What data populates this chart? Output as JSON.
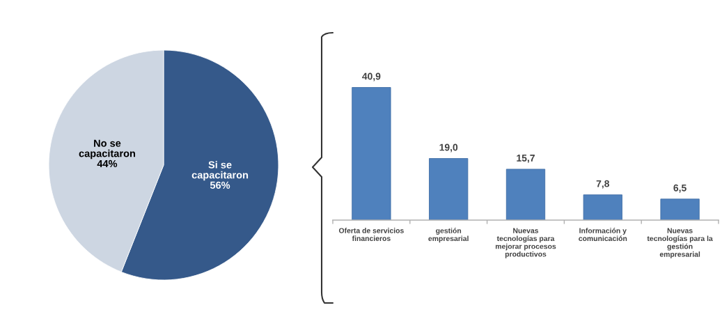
{
  "chart_data": [
    {
      "type": "pie",
      "categories": [
        "Si se\ncapacitaron",
        "No se\ncapacitaron"
      ],
      "values": [
        56,
        44
      ],
      "colors": [
        "#35598a",
        "#cdd6e2"
      ],
      "value_labels": [
        "56%",
        "44%"
      ]
    },
    {
      "type": "bar",
      "categories": [
        "Oferta de servicios\nfinancieros",
        "gestión\nempresarial",
        "Nuevas\ntecnologías para\nmejorar procesos\nproductivos",
        "Información y\ncomunicación",
        "Nuevas\ntecnologías para la\ngestión\nempresarial"
      ],
      "values": [
        40.9,
        19.0,
        15.7,
        7.8,
        6.5
      ],
      "color": "#4f81bd",
      "value_labels": [
        "40,9",
        "19,0",
        "15,7",
        "7,8",
        "6,5"
      ],
      "tick_labels": "x"
    }
  ]
}
